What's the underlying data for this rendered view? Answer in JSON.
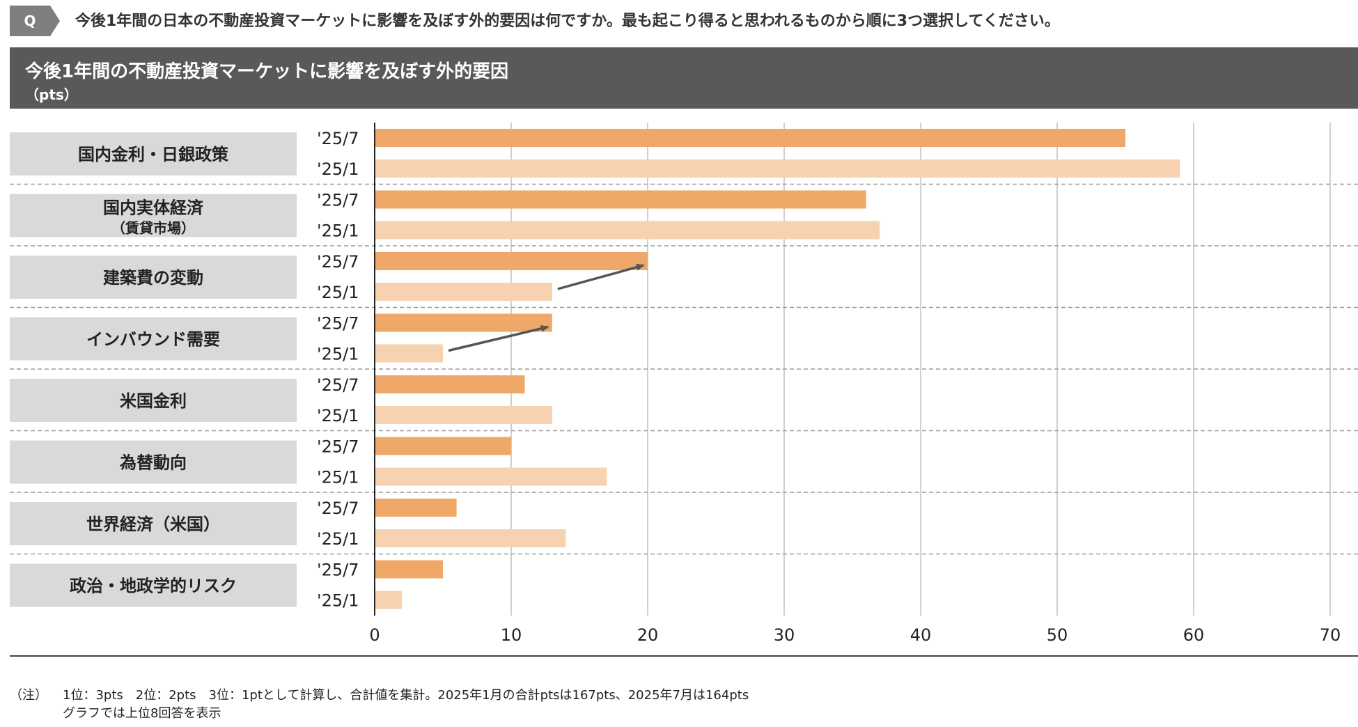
{
  "header": {
    "q_label": "Q",
    "question": "今後1年間の日本の不動産投資マーケットに影響を及ぼす外的要因は何ですか。最も起こり得ると思われるものから順に3つ選択してください。"
  },
  "colors": {
    "banner": "#595959",
    "bar_recent": "#f0a868",
    "bar_prior": "#f7d2b0",
    "category_box": "#d9d9d9",
    "grid": "#bfbfbf",
    "arrow": "#555555"
  },
  "chart_data": {
    "type": "bar",
    "orientation": "horizontal",
    "title": "今後1年間の不動産投資マーケットに影響を及ぼす外的要因",
    "ylabel": "（pts）",
    "xlim": [
      0,
      70
    ],
    "x_ticks": [
      "0",
      "10",
      "20",
      "30",
      "40",
      "50",
      "60",
      "70"
    ],
    "grid": true,
    "categories": [
      {
        "label": "国内金利・日銀政策",
        "label2": ""
      },
      {
        "label": "国内実体経済",
        "label2": "（賃貸市場）"
      },
      {
        "label": "建築費の変動",
        "label2": ""
      },
      {
        "label": "インバウンド需要",
        "label2": ""
      },
      {
        "label": "米国金利",
        "label2": ""
      },
      {
        "label": "為替動向",
        "label2": ""
      },
      {
        "label": "世界経済（米国）",
        "label2": ""
      },
      {
        "label": "政治・地政学的リスク",
        "label2": ""
      }
    ],
    "series": [
      {
        "name": "'25/7",
        "values": [
          55,
          36,
          20,
          13,
          11,
          10,
          6,
          5
        ]
      },
      {
        "name": "'25/1",
        "values": [
          59,
          37,
          13,
          5,
          13,
          17,
          14,
          2
        ]
      }
    ],
    "annotations": [
      {
        "type": "arrow",
        "category_index": 2,
        "from_series": 1,
        "to_series": 0
      },
      {
        "type": "arrow",
        "category_index": 3,
        "from_series": 1,
        "to_series": 0
      }
    ]
  },
  "footnote": {
    "label": "（注）",
    "line1": "1位：3pts　2位：2pts　3位：1ptとして計算し、合計値を集計。2025年1月の合計ptsは167pts、2025年7月は164pts",
    "line2": "グラフでは上位8回答を表示"
  }
}
